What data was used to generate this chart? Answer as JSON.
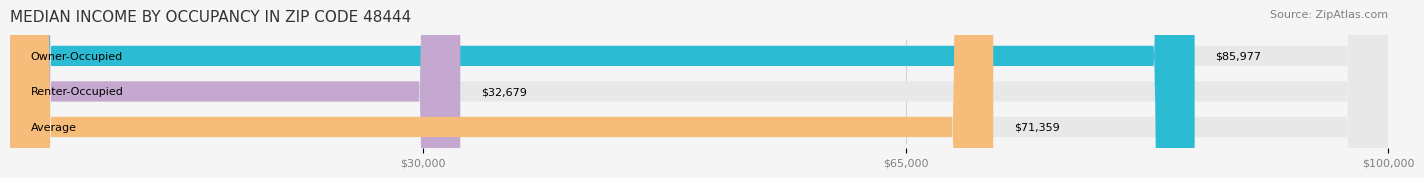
{
  "title": "MEDIAN INCOME BY OCCUPANCY IN ZIP CODE 48444",
  "source": "Source: ZipAtlas.com",
  "categories": [
    "Owner-Occupied",
    "Renter-Occupied",
    "Average"
  ],
  "values": [
    85977,
    32679,
    71359
  ],
  "labels": [
    "$85,977",
    "$32,679",
    "$71,359"
  ],
  "bar_colors": [
    "#2bbcd4",
    "#c4a8d0",
    "#f5bc7a"
  ],
  "bar_bg_color": "#e8e8e8",
  "xmin": 0,
  "xmax": 100000,
  "xticks": [
    30000,
    65000,
    100000
  ],
  "xtick_labels": [
    "$30,000",
    "$65,000",
    "$100,000"
  ],
  "title_fontsize": 11,
  "source_fontsize": 8,
  "label_fontsize": 8,
  "bar_height": 0.55,
  "background_color": "#f5f5f5"
}
